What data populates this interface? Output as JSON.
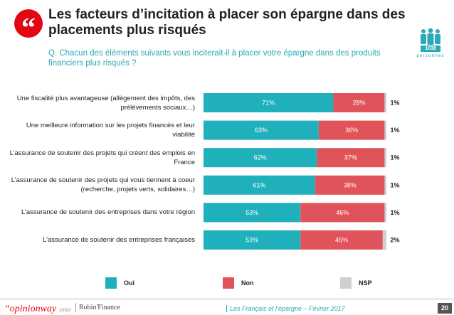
{
  "header": {
    "title": "Les facteurs d’incitation à placer son épargne dans des placements plus risqués",
    "question": "Q. Chacun des éléments suivants vous inciterait-il à placer votre épargne dans des produits financiers plus risqués ?",
    "quote_mark": "“",
    "sample_count": "1038",
    "sample_label": "personnes"
  },
  "legend": {
    "oui": "Oui",
    "non": "Non",
    "nsp": "NSP"
  },
  "colors": {
    "oui": "#20b0bc",
    "non": "#e0535b",
    "nsp": "#cfcfcf",
    "accent": "#e30613"
  },
  "chart_data": {
    "type": "bar",
    "orientation": "horizontal",
    "stacked": true,
    "percent_stacked": true,
    "categories": [
      "Une fiscalité plus avantageuse (allègement des impôts, des prélèvements sociaux…)",
      "Une meilleure information sur les projets financés et leur viabilité",
      "L’assurance de soutenir des projets qui créent des emplois en France",
      "L’assurance de soutenir des projets qui vous tiennent à coeur (recherche, projets verts, solidaires…)",
      "L’assurance de soutenir des entreprises dans votre région",
      "L’assurance de soutenir des entreprises françaises"
    ],
    "series": [
      {
        "name": "Oui",
        "values": [
          71,
          63,
          62,
          61,
          53,
          53
        ]
      },
      {
        "name": "Non",
        "values": [
          28,
          36,
          37,
          38,
          46,
          45
        ]
      },
      {
        "name": "NSP",
        "values": [
          1,
          1,
          1,
          1,
          1,
          2
        ]
      }
    ],
    "value_labels": {
      "oui": [
        "71%",
        "63%",
        "62%",
        "61%",
        "53%",
        "53%"
      ],
      "non": [
        "28%",
        "36%",
        "37%",
        "38%",
        "46%",
        "45%"
      ],
      "nsp": [
        "1%",
        "1%",
        "1%",
        "1%",
        "1%",
        "2%"
      ]
    },
    "xlim": [
      0,
      100
    ],
    "grid": false,
    "legend_position": "bottom"
  },
  "footer": {
    "brand": "“opinionway",
    "pour": "pour",
    "partner": "Robin'Finance",
    "text": "Les Français et l’épargne – Février 2017",
    "page": "20"
  }
}
